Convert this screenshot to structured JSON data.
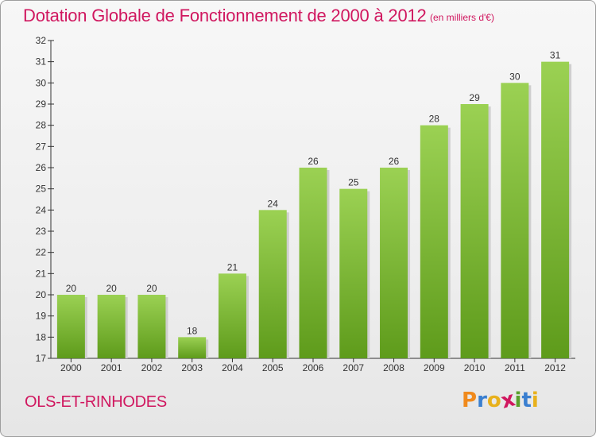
{
  "chart_data": {
    "type": "bar",
    "title": "Dotation Globale de Fonctionnement de 2000 à 2012",
    "subtitle": "(en milliers d'€)",
    "categories": [
      "2000",
      "2001",
      "2002",
      "2003",
      "2004",
      "2005",
      "2006",
      "2007",
      "2008",
      "2009",
      "2010",
      "2011",
      "2012"
    ],
    "values": [
      20,
      20,
      20,
      18,
      21,
      24,
      26,
      25,
      26,
      28,
      29,
      30,
      31
    ],
    "ylim": [
      17,
      32
    ],
    "yticks": [
      "17",
      "18",
      "19",
      "20",
      "21",
      "22",
      "23",
      "24",
      "25",
      "26",
      "27",
      "28",
      "29",
      "30",
      "31",
      "32"
    ],
    "xlabel": "",
    "ylabel": "",
    "grid": false,
    "colors": {
      "bar_top": "#9bd153",
      "bar_bottom": "#5e9b1b",
      "title": "#d0175f"
    }
  },
  "footer": {
    "commune": "OLS-ET-RINHODES",
    "logo_letters": [
      "P",
      "r",
      "o",
      "x",
      "i",
      "t",
      "i"
    ],
    "logo_colors": [
      "#f08a1d",
      "#3a7fd0",
      "#e8b11c",
      "#d0175f",
      "#5aa02c",
      "#3a7fd0",
      "#e8b11c"
    ]
  }
}
